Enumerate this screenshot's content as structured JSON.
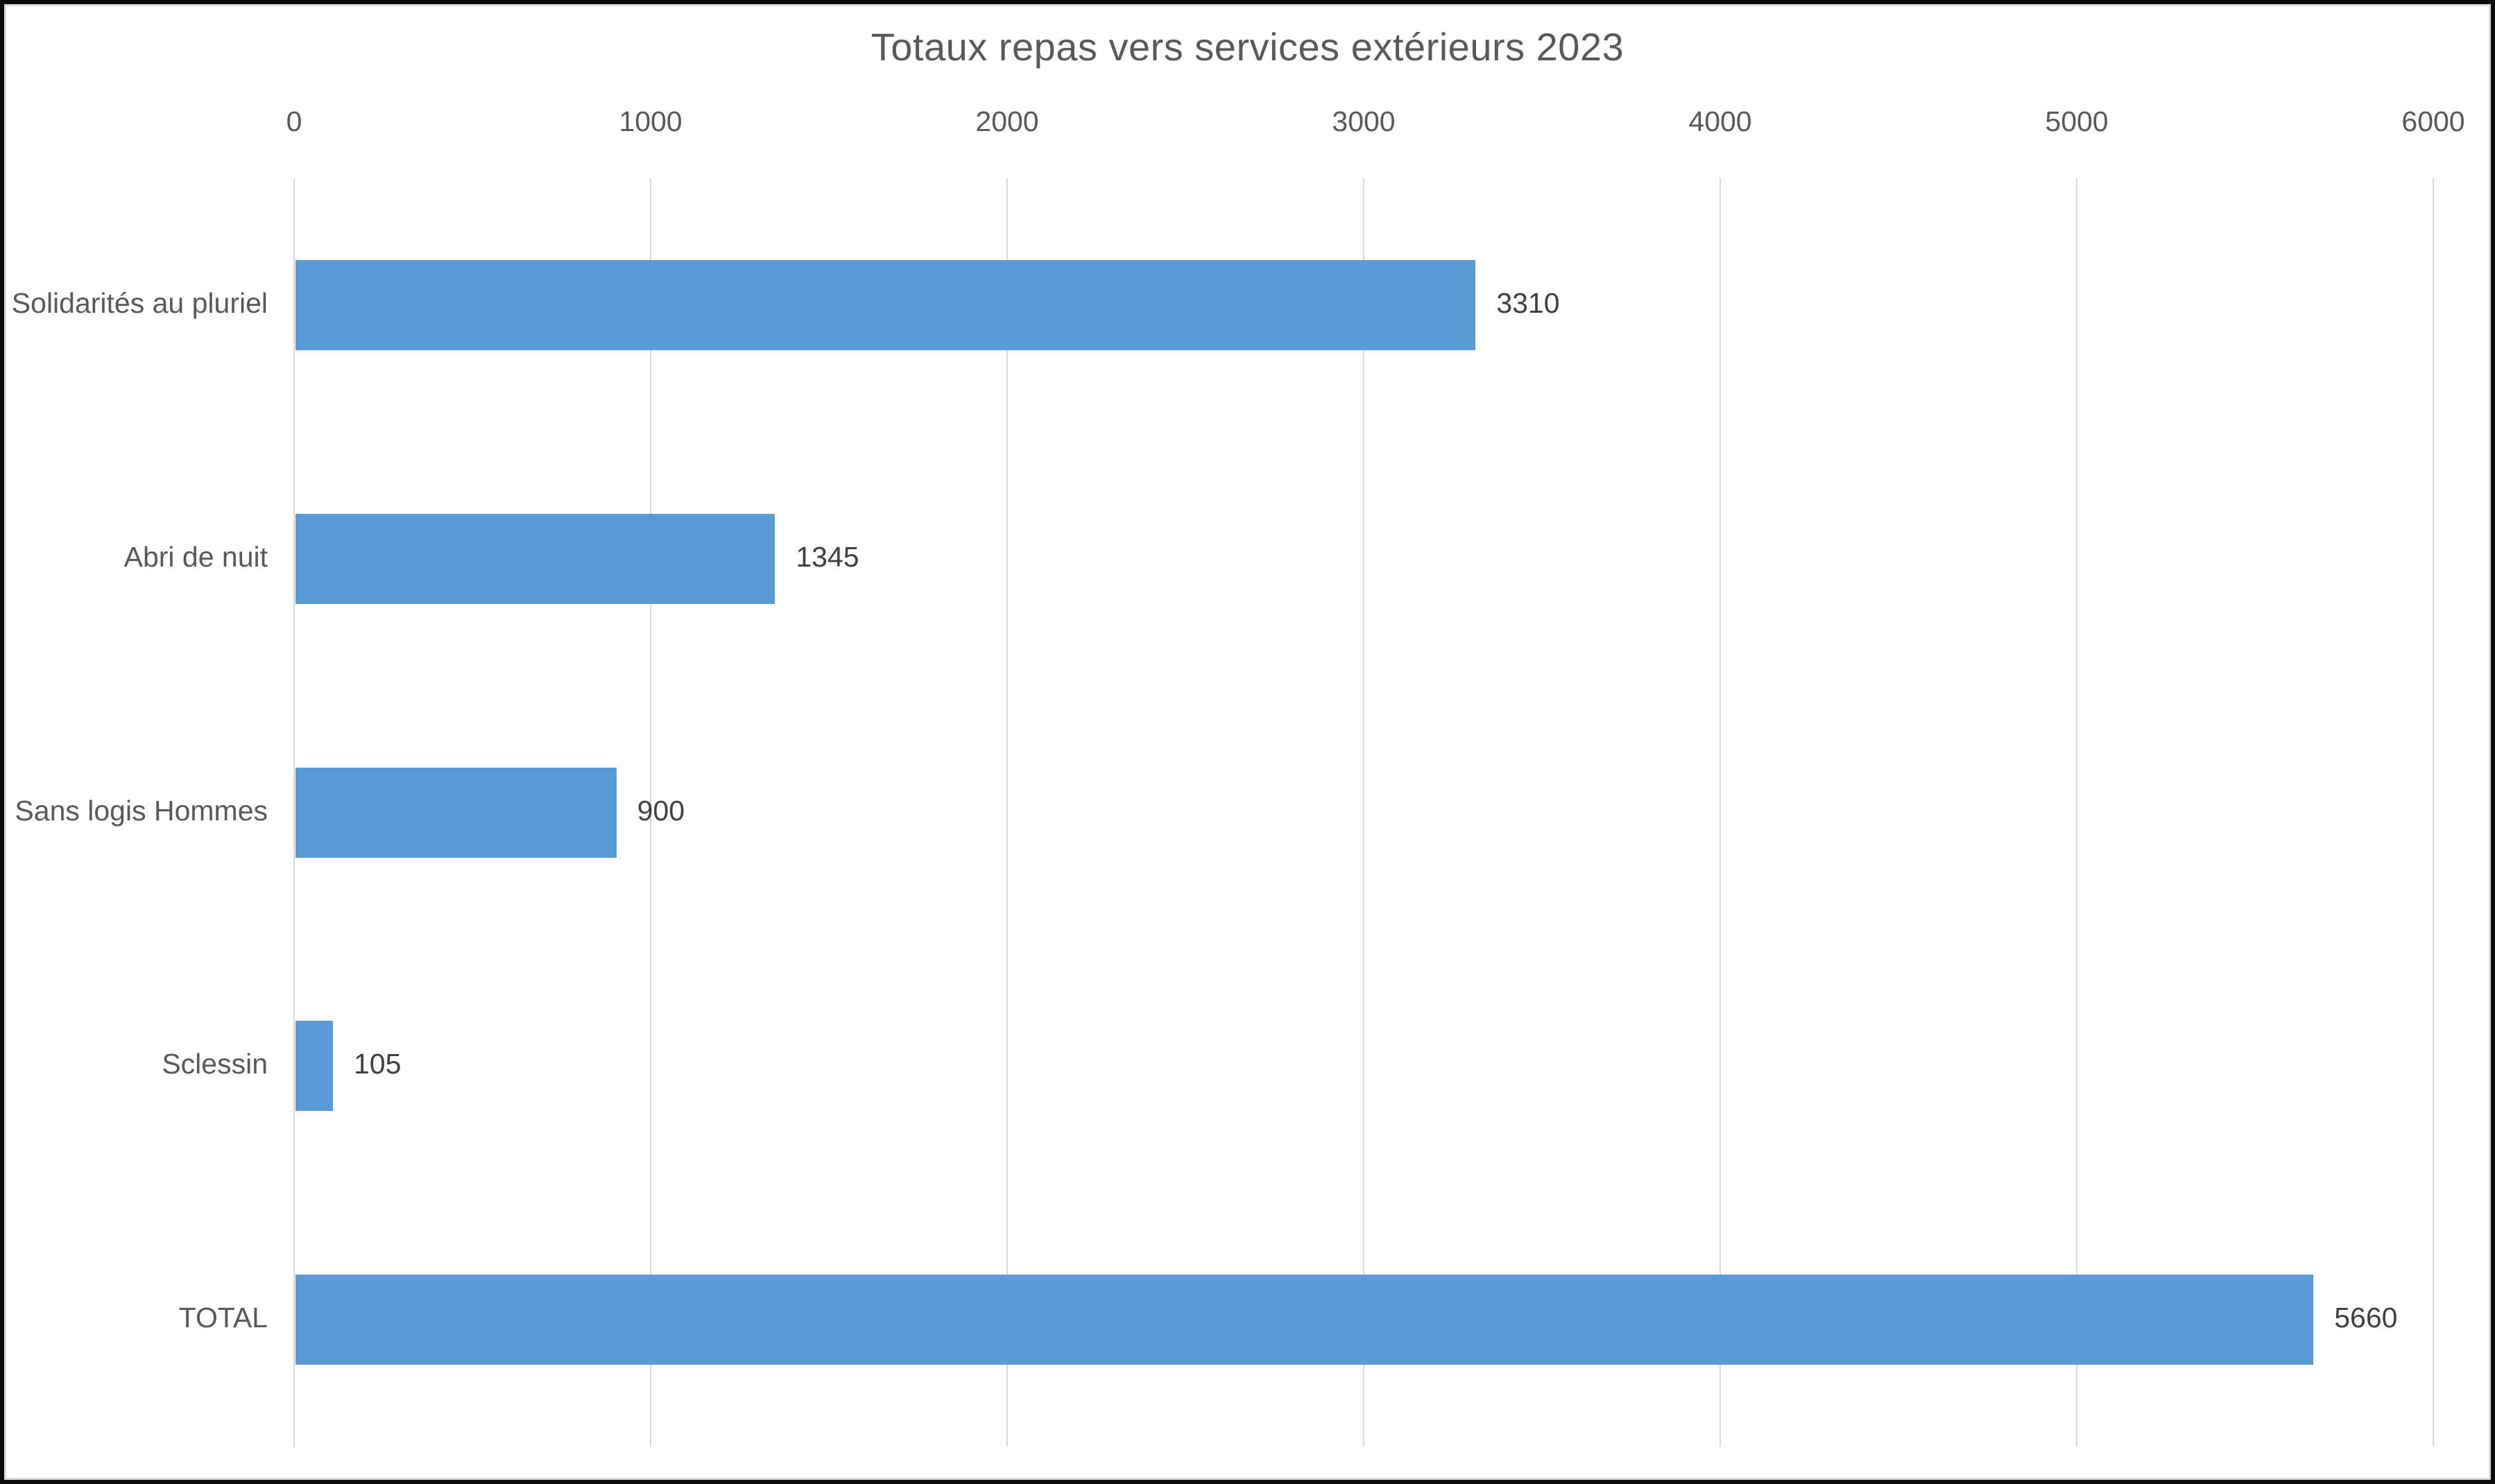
{
  "chart_data": {
    "type": "bar",
    "orientation": "horizontal",
    "title": "Totaux repas vers services extérieurs 2023",
    "categories": [
      "Solidarités au pluriel",
      "Abri de nuit",
      "Sans logis Hommes",
      "Sclessin",
      "TOTAL"
    ],
    "values": [
      3310,
      1345,
      900,
      105,
      5660
    ],
    "value_labels": [
      "3310",
      "1345",
      "900",
      "105",
      "5660"
    ],
    "xlabel": "",
    "ylabel": "",
    "xlim": [
      0,
      6000
    ],
    "x_ticks": [
      0,
      1000,
      2000,
      3000,
      4000,
      5000,
      6000
    ],
    "x_tick_labels": [
      "0",
      "1000",
      "2000",
      "3000",
      "4000",
      "5000",
      "6000"
    ],
    "axis_position": "top",
    "grid": true,
    "legend": "none",
    "colors": {
      "bar": "#5B9BD5",
      "gridline": "#D9D9D9",
      "title": "#595959",
      "category_label": "#595959",
      "value_label": "#404040",
      "outer_border": "#0A0A0A",
      "chart_border": "#DCDCDC"
    }
  }
}
